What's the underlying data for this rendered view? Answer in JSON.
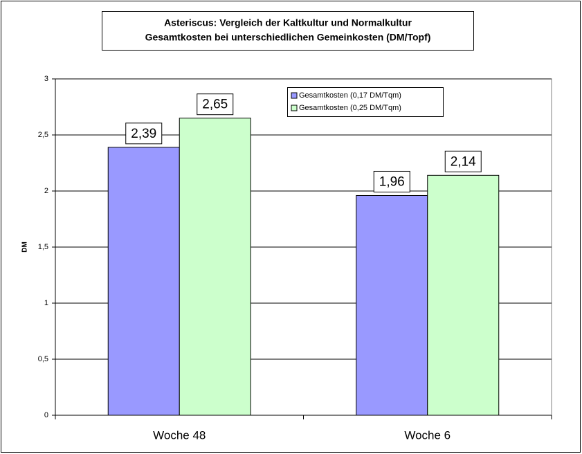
{
  "chart_data": {
    "type": "bar",
    "title": "Asteriscus: Vergleich der Kaltkultur und Normalkultur",
    "subtitle": "Gesamtkosten bei unterschiedlichen Gemeinkosten (DM/Topf)",
    "y_label": "DM",
    "categories": [
      "Woche 48",
      "Woche 6"
    ],
    "series": [
      {
        "name": "Gesamtkosten (0,17 DM/Tqm)",
        "color": "#9999ff",
        "values": [
          2.39,
          1.96
        ],
        "value_labels": [
          "2,39",
          "1,96"
        ]
      },
      {
        "name": "Gesamtkosten (0,25 DM/Tqm)",
        "color": "#ccffcc",
        "values": [
          2.65,
          2.14
        ],
        "value_labels": [
          "2,65",
          "2,14"
        ]
      }
    ],
    "ylim": [
      0,
      3
    ],
    "yticks": [
      0,
      {
        "value": 0.5,
        "label": "0,5"
      },
      1,
      {
        "value": 1.5,
        "label": "1,5"
      },
      2,
      {
        "value": 2.5,
        "label": "2,5"
      },
      3
    ],
    "grid": true,
    "legend": "top-right"
  }
}
